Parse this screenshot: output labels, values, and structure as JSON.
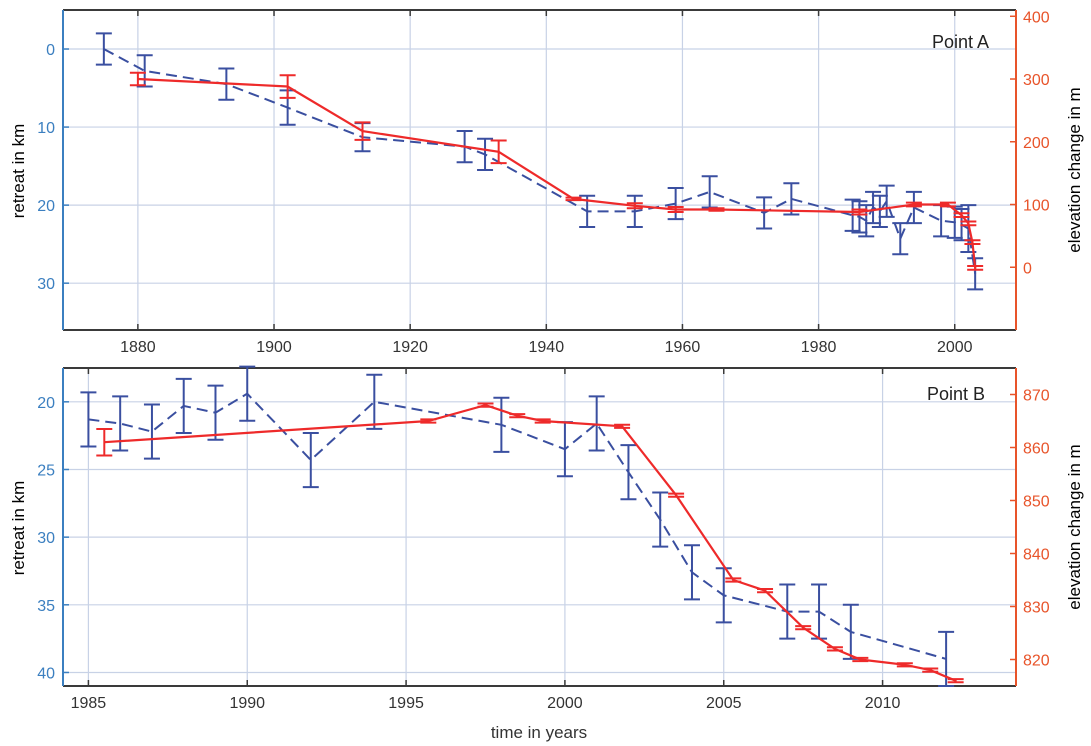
{
  "colors": {
    "retreat": "#3a4fa0",
    "retreat_axis": "#3b7fc0",
    "elevation": "#ee2a2a",
    "elevation_axis": "#e8542a",
    "grid": "#c8d2e6",
    "frame": "#3a3a3a"
  },
  "chart_data": [
    {
      "type": "line",
      "label": "Point A",
      "xlim": [
        1869,
        2009
      ],
      "xticks": [
        1880,
        1900,
        1920,
        1940,
        1960,
        1980,
        2000
      ],
      "ylabel_left": "retreat in km",
      "ylim_left": [
        36,
        -5
      ],
      "yticks_left": [
        0,
        10,
        20,
        30
      ],
      "ylabel_right": "elevation change in m",
      "ylim_right": [
        -100,
        410
      ],
      "yticks_right": [
        0,
        100,
        200,
        300,
        400
      ],
      "grid": true,
      "series": [
        {
          "axis": "left",
          "style": "dashed",
          "color": "#3a4fa0",
          "points": [
            {
              "x": 1875,
              "y": 0,
              "err": 2.0
            },
            {
              "x": 1881,
              "y": 2.8,
              "err": 2.0
            },
            {
              "x": 1893,
              "y": 4.5,
              "err": 2.0
            },
            {
              "x": 1902,
              "y": 7.5,
              "err": 2.2
            },
            {
              "x": 1913,
              "y": 11.3,
              "err": 1.8
            },
            {
              "x": 1928,
              "y": 12.5,
              "err": 2.0
            },
            {
              "x": 1931,
              "y": 13.5,
              "err": 2.0
            },
            {
              "x": 1946,
              "y": 20.8,
              "err": 2.0
            },
            {
              "x": 1953,
              "y": 20.8,
              "err": 2.0
            },
            {
              "x": 1959,
              "y": 19.8,
              "err": 2.0
            },
            {
              "x": 1964,
              "y": 18.3,
              "err": 2.0
            },
            {
              "x": 1972,
              "y": 21.0,
              "err": 2.0
            },
            {
              "x": 1976,
              "y": 19.2,
              "err": 2.0
            },
            {
              "x": 1985,
              "y": 21.3,
              "err": 2.0
            },
            {
              "x": 1986,
              "y": 21.5,
              "err": 2.0
            },
            {
              "x": 1987,
              "y": 22.0,
              "err": 2.0
            },
            {
              "x": 1988,
              "y": 20.3,
              "err": 2.0
            },
            {
              "x": 1989,
              "y": 20.8,
              "err": 2.0
            },
            {
              "x": 1990,
              "y": 19.5,
              "err": 2.0
            },
            {
              "x": 1992,
              "y": 24.3,
              "err": 2.0
            },
            {
              "x": 1994,
              "y": 20.3,
              "err": 2.0
            },
            {
              "x": 1998,
              "y": 22.0,
              "err": 2.0
            },
            {
              "x": 2000,
              "y": 22.2,
              "err": 2.0
            },
            {
              "x": 2001,
              "y": 22.5,
              "err": 2.0
            },
            {
              "x": 2002,
              "y": 23.0,
              "err": 3.0
            },
            {
              "x": 2003,
              "y": 28.8,
              "err": 2.0
            }
          ]
        },
        {
          "axis": "right",
          "style": "solid",
          "color": "#ee2a2a",
          "points": [
            {
              "x": 1880,
              "y": 300,
              "err": 10
            },
            {
              "x": 1902,
              "y": 288,
              "err": 18
            },
            {
              "x": 1913,
              "y": 217,
              "err": 14
            },
            {
              "x": 1933,
              "y": 184,
              "err": 18
            },
            {
              "x": 1944,
              "y": 109,
              "err": 2
            },
            {
              "x": 1953,
              "y": 98,
              "err": 4
            },
            {
              "x": 1959,
              "y": 92,
              "err": 4
            },
            {
              "x": 1965,
              "y": 92,
              "err": 2
            },
            {
              "x": 1986,
              "y": 88,
              "err": 4
            },
            {
              "x": 1994,
              "y": 100,
              "err": 3
            },
            {
              "x": 1999,
              "y": 100,
              "err": 3
            },
            {
              "x": 2001,
              "y": 83,
              "err": 3
            },
            {
              "x": 2002,
              "y": 70,
              "err": 3
            },
            {
              "x": 2002.6,
              "y": 40,
              "err": 3
            },
            {
              "x": 2003,
              "y": -1,
              "err": 3
            }
          ]
        }
      ]
    },
    {
      "type": "line",
      "label": "Point B",
      "xlabel": "time in years",
      "xlim": [
        1984.2,
        2014.2
      ],
      "xticks": [
        1985,
        1990,
        1995,
        2000,
        2005,
        2010
      ],
      "ylabel_left": "retreat in km",
      "ylim_left": [
        41,
        17.5
      ],
      "yticks_left": [
        20,
        25,
        30,
        35,
        40
      ],
      "ylabel_right": "elevation change in m",
      "ylim_right": [
        815,
        875
      ],
      "yticks_right": [
        820,
        830,
        840,
        850,
        860,
        870
      ],
      "grid": true,
      "series": [
        {
          "axis": "left",
          "style": "dashed",
          "color": "#3a4fa0",
          "points": [
            {
              "x": 1985,
              "y": 21.3,
              "err": 2.0
            },
            {
              "x": 1986,
              "y": 21.6,
              "err": 2.0
            },
            {
              "x": 1987,
              "y": 22.2,
              "err": 2.0
            },
            {
              "x": 1988,
              "y": 20.3,
              "err": 2.0
            },
            {
              "x": 1989,
              "y": 20.8,
              "err": 2.0
            },
            {
              "x": 1990,
              "y": 19.4,
              "err": 2.0
            },
            {
              "x": 1992,
              "y": 24.3,
              "err": 2.0
            },
            {
              "x": 1994,
              "y": 20.0,
              "err": 2.0
            },
            {
              "x": 1998,
              "y": 21.7,
              "err": 2.0
            },
            {
              "x": 2000,
              "y": 23.5,
              "err": 2.0
            },
            {
              "x": 2001,
              "y": 21.6,
              "err": 2.0
            },
            {
              "x": 2002,
              "y": 25.2,
              "err": 2.0
            },
            {
              "x": 2003,
              "y": 28.7,
              "err": 2.0
            },
            {
              "x": 2004,
              "y": 32.6,
              "err": 2.0
            },
            {
              "x": 2005,
              "y": 34.3,
              "err": 2.0
            },
            {
              "x": 2007,
              "y": 35.5,
              "err": 2.0
            },
            {
              "x": 2008,
              "y": 35.5,
              "err": 2.0
            },
            {
              "x": 2009,
              "y": 37.0,
              "err": 2.0
            },
            {
              "x": 2012,
              "y": 39.0,
              "err": 2.0
            }
          ]
        },
        {
          "axis": "right",
          "style": "solid",
          "color": "#ee2a2a",
          "points": [
            {
              "x": 1985.5,
              "y": 861,
              "err": 2.5
            },
            {
              "x": 1995.7,
              "y": 865,
              "err": 0.3
            },
            {
              "x": 1997.5,
              "y": 868,
              "err": 0.3
            },
            {
              "x": 1998.5,
              "y": 866,
              "err": 0.3
            },
            {
              "x": 1999.3,
              "y": 865,
              "err": 0.3
            },
            {
              "x": 2001.8,
              "y": 864,
              "err": 0.3
            },
            {
              "x": 2003.5,
              "y": 851,
              "err": 0.3
            },
            {
              "x": 2005.3,
              "y": 835,
              "err": 0.3
            },
            {
              "x": 2006.3,
              "y": 833,
              "err": 0.3
            },
            {
              "x": 2007.5,
              "y": 826,
              "err": 0.3
            },
            {
              "x": 2008.5,
              "y": 822,
              "err": 0.3
            },
            {
              "x": 2009.3,
              "y": 820,
              "err": 0.3
            },
            {
              "x": 2010.7,
              "y": 819,
              "err": 0.3
            },
            {
              "x": 2011.5,
              "y": 818,
              "err": 0.3
            },
            {
              "x": 2012.3,
              "y": 816,
              "err": 0.3
            }
          ]
        }
      ]
    }
  ]
}
